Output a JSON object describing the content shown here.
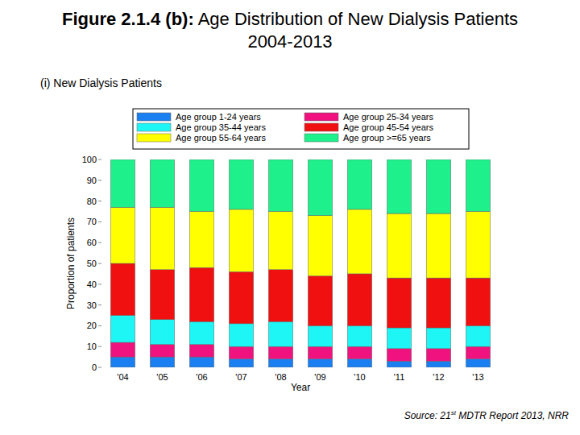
{
  "chart_data": {
    "type": "bar",
    "stacked": true,
    "grid": false,
    "title": "Figure 2.1.4 (b): Age Distribution of New Dialysis Patients 2004-2013",
    "subtitle": "(i) New Dialysis Patients",
    "x_label": "Year",
    "y_label": "Proportion of patients",
    "annotations": [
      "Source: 21st MDTR Report 2013, NRR"
    ],
    "categories": [
      "'04",
      "'05",
      "'06",
      "'07",
      "'08",
      "'09",
      "'10",
      "'11",
      "'12",
      "'13"
    ],
    "ylim": [
      0,
      100
    ],
    "yticks": [
      0,
      10,
      20,
      30,
      40,
      50,
      60,
      70,
      80,
      90,
      100
    ],
    "series": [
      {
        "name": "Age group 1-24 years",
        "color": "#1a7ff0",
        "values": [
          5,
          5,
          5,
          4,
          4,
          4,
          4,
          3,
          3,
          4
        ]
      },
      {
        "name": "Age group 25-34 years",
        "color": "#f0127e",
        "values": [
          7,
          6,
          6,
          6,
          6,
          6,
          6,
          6,
          6,
          6
        ]
      },
      {
        "name": "Age group 35-44 years",
        "color": "#1ef5f5",
        "values": [
          13,
          12,
          11,
          11,
          12,
          10,
          10,
          10,
          10,
          10
        ]
      },
      {
        "name": "Age group 45-54 years",
        "color": "#f01010",
        "values": [
          25,
          24,
          26,
          25,
          25,
          24,
          25,
          24,
          24,
          23
        ]
      },
      {
        "name": "Age group 55-64 years",
        "color": "#ffff00",
        "values": [
          27,
          30,
          27,
          30,
          28,
          29,
          31,
          31,
          31,
          32
        ]
      },
      {
        "name": "Age group >=65 years",
        "color": "#1ef08c",
        "values": [
          23,
          23,
          25,
          24,
          25,
          27,
          24,
          26,
          26,
          25
        ]
      }
    ]
  }
}
